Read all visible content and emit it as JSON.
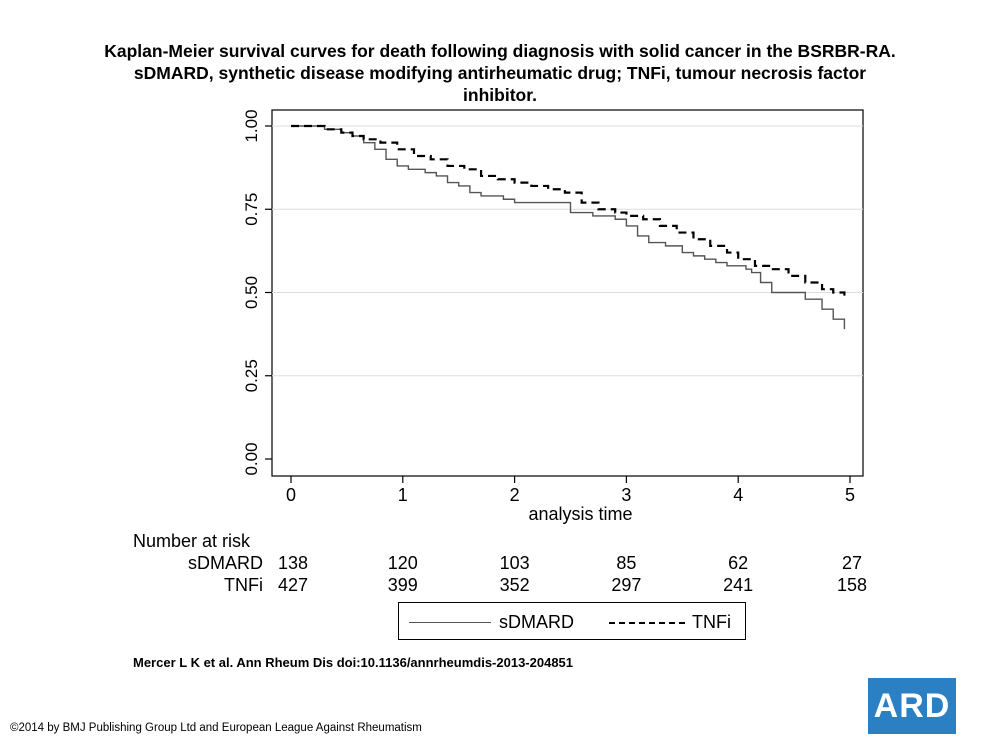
{
  "title_lines": [
    "Kaplan-Meier survival curves for death following diagnosis with solid cancer in the BSRBR-RA.",
    "sDMARD, synthetic disease modifying antirheumatic drug; TNFi, tumour necrosis factor",
    "inhibitor."
  ],
  "chart_data": {
    "type": "line",
    "title": "Kaplan-Meier survival curves for death following diagnosis with solid cancer in the BSRBR-RA. sDMARD, synthetic disease modifying antirheumatic drug; TNFi, tumour necrosis factor inhibitor.",
    "xlabel": "analysis time",
    "ylabel": "",
    "xlim": [
      0,
      5
    ],
    "ylim": [
      0,
      1
    ],
    "x_ticks": [
      "0",
      "1",
      "2",
      "3",
      "4",
      "5"
    ],
    "y_ticks": [
      "0.00",
      "0.25",
      "0.50",
      "0.75",
      "1.00"
    ],
    "grid": true,
    "legend_position": "bottom",
    "series": [
      {
        "name": "sDMARD",
        "style": "solid",
        "color": "#555555",
        "x": [
          0,
          0.15,
          0.3,
          0.45,
          0.55,
          0.65,
          0.75,
          0.85,
          0.95,
          1.05,
          1.2,
          1.3,
          1.4,
          1.5,
          1.6,
          1.7,
          1.8,
          1.9,
          2.0,
          2.1,
          2.3,
          2.5,
          2.7,
          2.9,
          3.0,
          3.1,
          3.2,
          3.35,
          3.5,
          3.6,
          3.7,
          3.8,
          3.9,
          4.0,
          4.07,
          4.12,
          4.2,
          4.3,
          4.45,
          4.6,
          4.75,
          4.85,
          4.95
        ],
        "y": [
          1.0,
          1.0,
          0.99,
          0.98,
          0.97,
          0.95,
          0.93,
          0.9,
          0.88,
          0.87,
          0.86,
          0.85,
          0.83,
          0.82,
          0.8,
          0.79,
          0.79,
          0.78,
          0.77,
          0.77,
          0.77,
          0.74,
          0.73,
          0.72,
          0.7,
          0.67,
          0.65,
          0.64,
          0.62,
          0.61,
          0.6,
          0.59,
          0.58,
          0.58,
          0.57,
          0.56,
          0.53,
          0.5,
          0.5,
          0.48,
          0.45,
          0.42,
          0.39
        ]
      },
      {
        "name": "TNFi",
        "style": "dashed",
        "color": "#000000",
        "x": [
          0,
          0.15,
          0.3,
          0.45,
          0.55,
          0.65,
          0.8,
          0.95,
          1.1,
          1.25,
          1.4,
          1.55,
          1.7,
          1.85,
          2.0,
          2.15,
          2.3,
          2.45,
          2.6,
          2.75,
          2.9,
          3.0,
          3.15,
          3.3,
          3.45,
          3.6,
          3.75,
          3.9,
          4.0,
          4.15,
          4.3,
          4.45,
          4.6,
          4.75,
          4.85,
          4.95
        ],
        "y": [
          1.0,
          1.0,
          0.99,
          0.98,
          0.97,
          0.96,
          0.95,
          0.93,
          0.91,
          0.9,
          0.88,
          0.87,
          0.85,
          0.84,
          0.83,
          0.82,
          0.81,
          0.8,
          0.77,
          0.75,
          0.74,
          0.73,
          0.72,
          0.7,
          0.68,
          0.66,
          0.64,
          0.62,
          0.6,
          0.58,
          0.57,
          0.55,
          0.53,
          0.51,
          0.5,
          0.48
        ]
      }
    ],
    "number_at_risk": {
      "header": "Number at risk",
      "rows": [
        {
          "label": "sDMARD",
          "values": [
            "138",
            "120",
            "103",
            "85",
            "62",
            "27"
          ]
        },
        {
          "label": "TNFi",
          "values": [
            "427",
            "399",
            "352",
            "297",
            "241",
            "158"
          ]
        }
      ]
    }
  },
  "legend": {
    "items": [
      {
        "label": "sDMARD",
        "style": "solid"
      },
      {
        "label": "TNFi",
        "style": "dashed"
      }
    ]
  },
  "citation": "Mercer L K et al. Ann Rheum Dis doi:10.1136/annrheumdis-2013-204851",
  "copyright": "©2014 by BMJ Publishing Group Ltd and European League Against Rheumatism",
  "logo_text": "ARD"
}
